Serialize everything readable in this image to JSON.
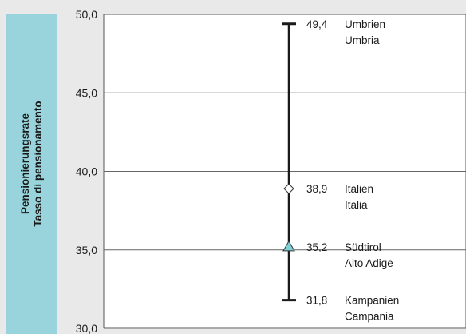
{
  "ylabel": [
    "Pensionierungsrate",
    "Tasso di pensionamento"
  ],
  "chart_data": {
    "type": "scatter",
    "ylim": [
      30,
      50
    ],
    "yticks": [
      "50,0",
      "45,0",
      "40,0",
      "35,0",
      "30,0"
    ],
    "ytick_values": [
      50,
      45,
      40,
      35,
      30
    ],
    "points": [
      {
        "value": 49.4,
        "value_label": "49,4",
        "name_de": "Umbrien",
        "name_it": "Umbria",
        "marker": "cap"
      },
      {
        "value": 38.9,
        "value_label": "38,9",
        "name_de": "Italien",
        "name_it": "Italia",
        "marker": "diamond"
      },
      {
        "value": 35.2,
        "value_label": "35,2",
        "name_de": "Südtirol",
        "name_it": "Alto Adige",
        "marker": "triangle"
      },
      {
        "value": 31.8,
        "value_label": "31,8",
        "name_de": "Kampanien",
        "name_it": "Campania",
        "marker": "cap"
      }
    ],
    "grid": true,
    "colors": {
      "line": "#1a1a1a",
      "triangle": "#7fd0d6",
      "diamond": "#ffffff",
      "band": "#99d4dc"
    }
  }
}
